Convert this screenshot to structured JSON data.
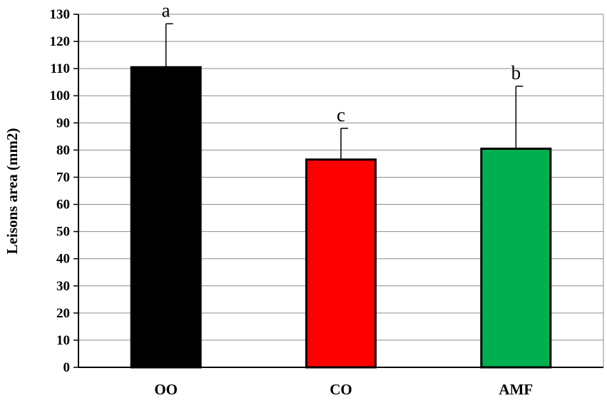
{
  "chart_data": {
    "type": "bar",
    "title": "",
    "xlabel": "",
    "ylabel": "Leisons area (mm2)",
    "ylim": [
      0,
      130
    ],
    "yticks": [
      0,
      10,
      20,
      30,
      40,
      50,
      60,
      70,
      80,
      90,
      100,
      110,
      120,
      130
    ],
    "grid": true,
    "categories": [
      "OO",
      "CO",
      "AMF"
    ],
    "values": [
      110.5,
      76.5,
      80.5
    ],
    "errors": [
      16,
      11.5,
      23
    ],
    "significance_letters": [
      "a",
      "c",
      "b"
    ],
    "colors": [
      "#000000",
      "#ff0000",
      "#00b050"
    ]
  }
}
